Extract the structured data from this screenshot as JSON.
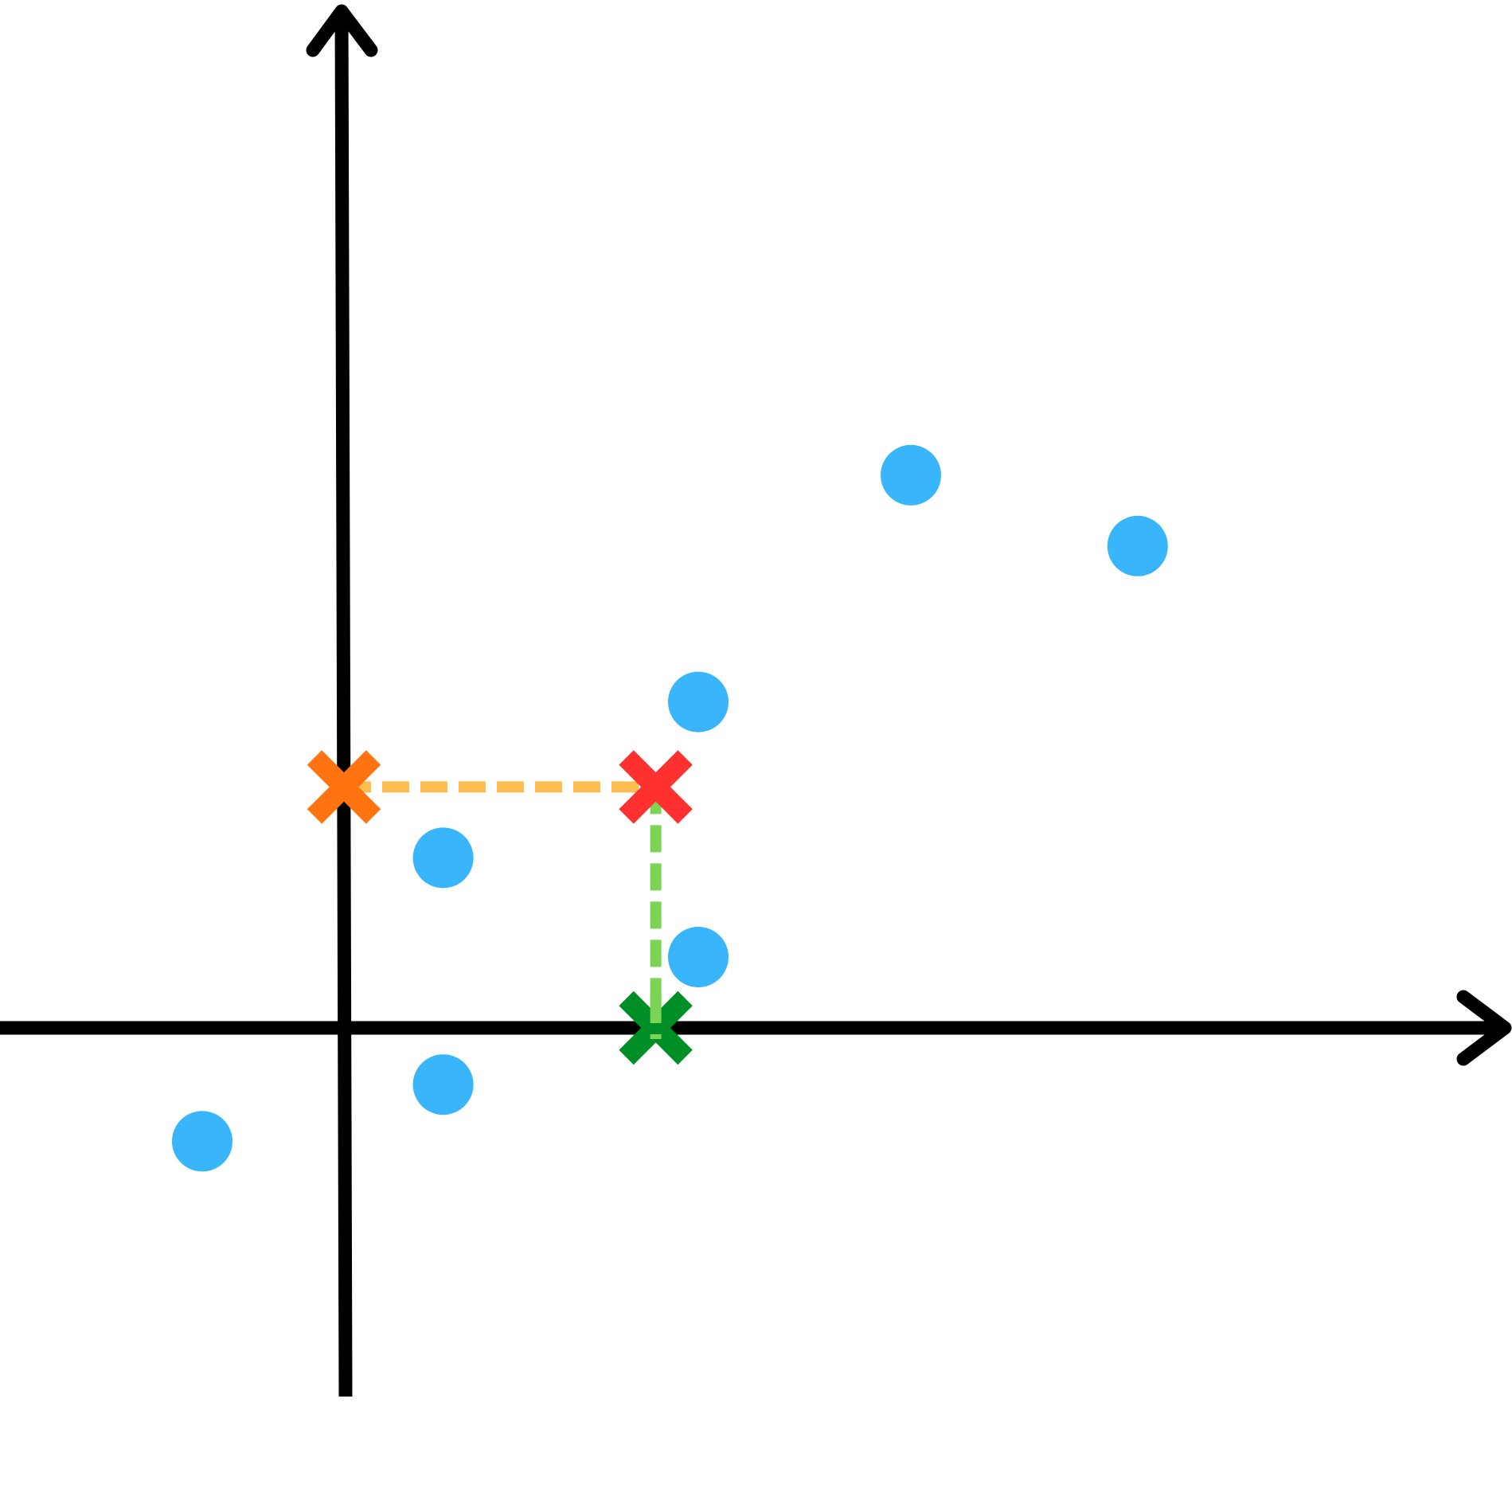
{
  "colors": {
    "axis": "#000000",
    "point": "#39b5fc",
    "projection_y_marker": "#ff7311",
    "target_marker": "#ff3030",
    "projection_x_marker": "#008f26",
    "guide_horizontal": "#ffbd4f",
    "guide_vertical": "#7bd454"
  },
  "chart_data": {
    "type": "scatter",
    "grid": false,
    "x_axis": {
      "arrow": true
    },
    "y_axis": {
      "arrow": true
    },
    "points": [
      {
        "x": -1.0,
        "y": -0.8
      },
      {
        "x": 0.7,
        "y": -0.4
      },
      {
        "x": 0.7,
        "y": 1.2
      },
      {
        "x": 2.5,
        "y": 0.5
      },
      {
        "x": 2.5,
        "y": 2.3
      },
      {
        "x": 4.0,
        "y": 3.9
      },
      {
        "x": 5.6,
        "y": 3.4
      }
    ],
    "markers": [
      {
        "role": "target",
        "shape": "cross",
        "color_key": "target_marker",
        "x": 2.2,
        "y": 1.7
      },
      {
        "role": "projection-y",
        "shape": "cross",
        "color_key": "projection_y_marker",
        "x": 0.0,
        "y": 1.7
      },
      {
        "role": "projection-x",
        "shape": "cross",
        "color_key": "projection_x_marker",
        "x": 2.2,
        "y": 0.0
      }
    ],
    "guides": [
      {
        "from": {
          "x": 0.0,
          "y": 1.7
        },
        "to": {
          "x": 2.2,
          "y": 1.7
        },
        "color_key": "guide_horizontal",
        "style": "dashed"
      },
      {
        "from": {
          "x": 2.2,
          "y": 1.7
        },
        "to": {
          "x": 2.2,
          "y": 0.0
        },
        "color_key": "guide_vertical",
        "style": "dashed"
      }
    ]
  }
}
